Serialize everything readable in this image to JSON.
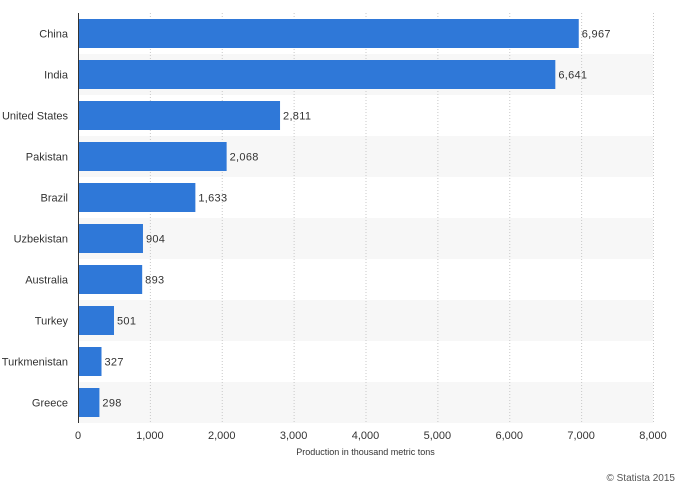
{
  "chart_data": {
    "type": "bar",
    "orientation": "horizontal",
    "title": "",
    "categories": [
      "China",
      "India",
      "United States",
      "Pakistan",
      "Brazil",
      "Uzbekistan",
      "Australia",
      "Turkey",
      "Turkmenistan",
      "Greece"
    ],
    "values": [
      6967,
      6641,
      2811,
      2068,
      1633,
      904,
      893,
      501,
      327,
      298
    ],
    "value_labels": [
      "6,967",
      "6,641",
      "2,811",
      "2,068",
      "1,633",
      "904",
      "893",
      "501",
      "327",
      "298"
    ],
    "xlabel": "Production in thousand metric tons",
    "ylabel": "",
    "xlim": [
      0,
      8000
    ],
    "ticks": [
      0,
      1000,
      2000,
      3000,
      4000,
      5000,
      6000,
      7000,
      8000
    ],
    "tick_labels": [
      "0",
      "1,000",
      "2,000",
      "3,000",
      "4,000",
      "5,000",
      "6,000",
      "7,000",
      "8,000"
    ],
    "grid": true,
    "bar_color": "#2f78d8",
    "band_color": "#f7f7f7",
    "grid_color": "#c8c8c8"
  },
  "credit": "© Statista 2015"
}
